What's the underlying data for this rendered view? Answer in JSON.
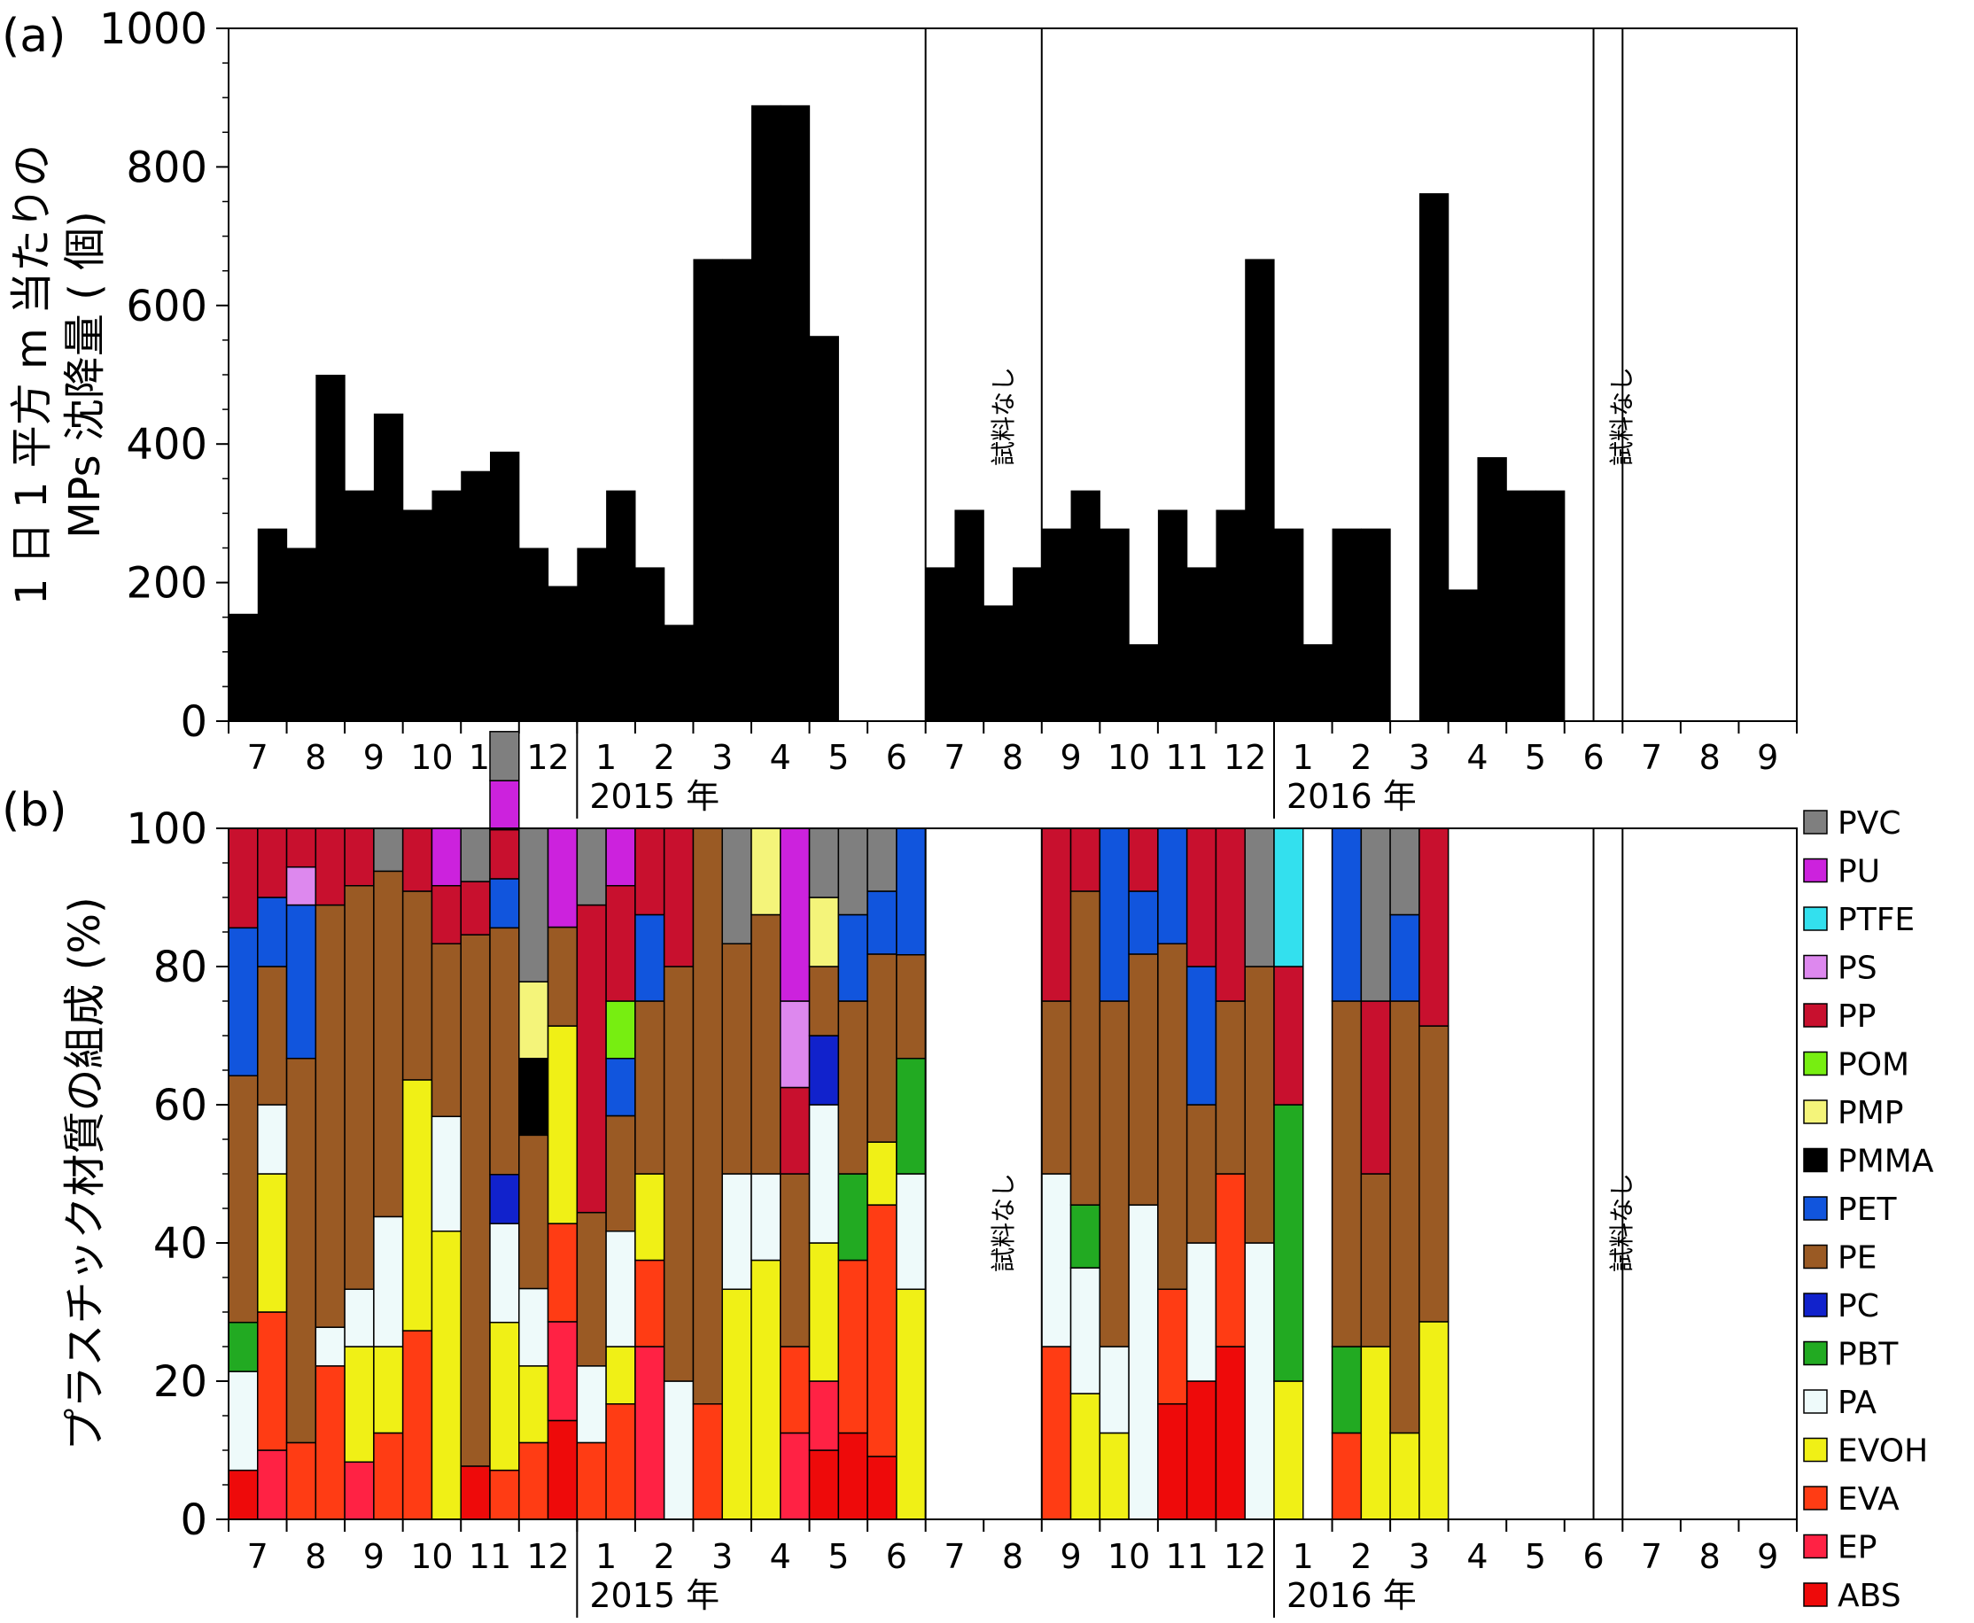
{
  "figure": {
    "panel_a_label": "(a)",
    "panel_b_label": "(b)",
    "no_sample_label": "試料なし",
    "year_labels": [
      "2015 年",
      "2016 年"
    ],
    "month_labels": [
      "7",
      "8",
      "9",
      "10",
      "11",
      "12",
      "1",
      "2",
      "3",
      "4",
      "5",
      "6",
      "7",
      "8",
      "9",
      "10",
      "11",
      "12",
      "1",
      "2",
      "3",
      "4",
      "5",
      "6",
      "7",
      "8",
      "9"
    ]
  },
  "chart_data": [
    {
      "type": "bar",
      "panel": "(a)",
      "ylabel_line1": "1 日 1 平方 m 当たりの",
      "ylabel_line2": "MPs 沈降量 ( 個)",
      "ylim": [
        0,
        1000
      ],
      "yticks": [
        "0",
        "200",
        "400",
        "600",
        "800",
        "1000"
      ],
      "categories": [
        "7",
        "8",
        "9",
        "10",
        "11",
        "12",
        "1",
        "2",
        "3",
        "4",
        "5",
        "6",
        "7",
        "8",
        "9",
        "10",
        "11",
        "12",
        "1",
        "2",
        "3",
        "4",
        "5",
        "6",
        "7",
        "8",
        "9"
      ],
      "years": [
        "2015 年",
        "2016 年"
      ],
      "no_sample_periods": [
        "2015-7 – 2015-8",
        "2016-6 (end) – 2016-7 (start)"
      ],
      "biweekly_values": [
        155,
        278,
        250,
        500,
        333,
        444,
        305,
        333,
        361,
        389,
        250,
        195,
        250,
        333,
        222,
        139,
        667,
        667,
        889,
        889,
        556,
        null,
        null,
        null,
        222,
        305,
        167,
        222,
        278,
        333,
        278,
        111,
        305,
        222,
        305,
        667,
        278,
        111,
        278,
        278,
        null,
        762,
        190,
        381,
        333,
        333
      ]
    },
    {
      "type": "bar",
      "stacked": true,
      "panel": "(b)",
      "ylabel": "プラスチック材質の組成 (%)",
      "ylim": [
        0,
        100
      ],
      "yticks": [
        "0",
        "20",
        "40",
        "60",
        "80",
        "100"
      ],
      "legend": [
        "PVC",
        "PU",
        "PTFE",
        "PS",
        "PP",
        "POM",
        "PMP",
        "PMMA",
        "PET",
        "PE",
        "PC",
        "PBT",
        "PA",
        "EVOH",
        "EVA",
        "EP",
        "ABS"
      ],
      "legend_position": "right",
      "colors": {
        "PVC": "#7f7f7f",
        "PU": "#cc22dd",
        "PTFE": "#33e0ee",
        "PS": "#dd88ee",
        "PP": "#c8102e",
        "POM": "#77ee11",
        "PMP": "#f4f47a",
        "PMMA": "#000000",
        "PET": "#1155dd",
        "PE": "#9a5a24",
        "PC": "#1122cc",
        "PBT": "#22aa22",
        "PA": "#eefafa",
        "EVOH": "#f0f016",
        "EVA": "#ff3c14",
        "EP": "#ff2244",
        "ABS": "#ee0a0a"
      },
      "composition_segments_bottom_to_top": [
        [
          [
            "ABS",
            7.1
          ],
          [
            "PA",
            14.3
          ],
          [
            "PBT",
            7.1
          ],
          [
            "PE",
            35.7
          ],
          [
            "PET",
            21.4
          ],
          [
            "PP",
            14.4
          ]
        ],
        [
          [
            "EP",
            10
          ],
          [
            "EVA",
            20
          ],
          [
            "EVOH",
            20
          ],
          [
            "PA",
            10
          ],
          [
            "PE",
            20
          ],
          [
            "PET",
            10
          ],
          [
            "PP",
            10
          ]
        ],
        [
          [
            "EVA",
            11.1
          ],
          [
            "PE",
            55.6
          ],
          [
            "PET",
            22.2
          ],
          [
            "PS",
            5.5
          ],
          [
            "PP",
            5.6
          ]
        ],
        [
          [
            "EVA",
            22.2
          ],
          [
            "PA",
            5.6
          ],
          [
            "PE",
            61.1
          ],
          [
            "PP",
            11.1
          ]
        ],
        [
          [
            "EP",
            8.3
          ],
          [
            "EVOH",
            16.7
          ],
          [
            "PA",
            8.3
          ],
          [
            "PE",
            58.4
          ],
          [
            "PP",
            8.3
          ]
        ],
        [
          [
            "EVA",
            12.5
          ],
          [
            "EVOH",
            12.5
          ],
          [
            "PA",
            18.8
          ],
          [
            "PE",
            50.0
          ],
          [
            "PVC",
            6.2
          ]
        ],
        [
          [
            "EVA",
            27.3
          ],
          [
            "EVOH",
            36.3
          ],
          [
            "PE",
            27.3
          ],
          [
            "PP",
            9.1
          ]
        ],
        [
          [
            "EVOH",
            41.7
          ],
          [
            "PA",
            16.6
          ],
          [
            "PE",
            25.0
          ],
          [
            "PP",
            8.4
          ],
          [
            "PU",
            8.3
          ]
        ],
        [
          [
            "ABS",
            7.7
          ],
          [
            "PE",
            76.9
          ],
          [
            "PP",
            7.7
          ],
          [
            "PVC",
            7.7
          ]
        ],
        [
          [
            "EVA",
            7.1
          ],
          [
            "EVOH",
            21.4
          ],
          [
            "PA",
            14.3
          ],
          [
            "PC",
            7.1
          ],
          [
            "PE",
            35.7
          ],
          [
            "PET",
            7.1
          ],
          [
            "PP",
            7.1
          ],
          [
            "PU",
            7.1
          ],
          [
            "PVC",
            7.1
          ]
        ],
        [
          [
            "EVA",
            11.1
          ],
          [
            "EVOH",
            11.1
          ],
          [
            "PA",
            11.2
          ],
          [
            "PE",
            22.2
          ],
          [
            "PMMA",
            11.1
          ],
          [
            "PMP",
            11.1
          ],
          [
            "PVC",
            22.2
          ]
        ],
        [
          [
            "ABS",
            14.3
          ],
          [
            "EP",
            14.3
          ],
          [
            "EVA",
            14.2
          ],
          [
            "EVOH",
            28.6
          ],
          [
            "PE",
            14.3
          ],
          [
            "PP",
            0
          ],
          [
            "PU",
            14.3
          ]
        ],
        [
          [
            "EVA",
            11.1
          ],
          [
            "PA",
            11.1
          ],
          [
            "PE",
            22.2
          ],
          [
            "PP",
            44.5
          ],
          [
            "PVC",
            11.1
          ]
        ],
        [
          [
            "EVA",
            16.7
          ],
          [
            "EVOH",
            8.3
          ],
          [
            "PA",
            16.7
          ],
          [
            "PE",
            16.7
          ],
          [
            "PET",
            8.3
          ],
          [
            "POM",
            8.3
          ],
          [
            "PP",
            16.7
          ],
          [
            "PU",
            8.3
          ]
        ],
        [
          [
            "EP",
            25
          ],
          [
            "EVA",
            12.5
          ],
          [
            "EVOH",
            12.5
          ],
          [
            "PE",
            25
          ],
          [
            "PET",
            12.5
          ],
          [
            "PP",
            12.5
          ]
        ],
        [
          [
            "PA",
            20
          ],
          [
            "PE",
            60
          ],
          [
            "PP",
            20
          ]
        ],
        [
          [
            "EVA",
            16.7
          ],
          [
            "PE",
            83.3
          ]
        ],
        [
          [
            "EVOH",
            33.3
          ],
          [
            "PA",
            16.7
          ],
          [
            "PE",
            33.3
          ],
          [
            "PVC",
            16.7
          ]
        ],
        [
          [
            "EVOH",
            37.5
          ],
          [
            "PA",
            12.5
          ],
          [
            "PE",
            37.5
          ],
          [
            "PMP",
            12.5
          ]
        ],
        [
          [
            "EP",
            12.5
          ],
          [
            "EVA",
            12.5
          ],
          [
            "PE",
            25
          ],
          [
            "PP",
            12.5
          ],
          [
            "PS",
            12.5
          ],
          [
            "PU",
            25
          ]
        ],
        [
          [
            "ABS",
            10
          ],
          [
            "EP",
            10
          ],
          [
            "EVOH",
            20
          ],
          [
            "PA",
            20
          ],
          [
            "PC",
            10
          ],
          [
            "PE",
            10
          ],
          [
            "PMP",
            10
          ],
          [
            "PVC",
            10
          ]
        ],
        [
          [
            "ABS",
            12.5
          ],
          [
            "EVA",
            25
          ],
          [
            "PBT",
            12.5
          ],
          [
            "PE",
            25
          ],
          [
            "PET",
            12.5
          ],
          [
            "PVC",
            12.5
          ]
        ],
        [
          [
            "ABS",
            9.1
          ],
          [
            "EVA",
            36.4
          ],
          [
            "EVOH",
            9.1
          ],
          [
            "PE",
            27.2
          ],
          [
            "PET",
            9.1
          ],
          [
            "PVC",
            9.1
          ]
        ],
        [
          [
            "EVOH",
            33.3
          ],
          [
            "PA",
            16.7
          ],
          [
            "PBT",
            16.7
          ],
          [
            "PE",
            15.0
          ],
          [
            "PET",
            18.3
          ]
        ],
        [
          [
            "PA",
            37.5
          ],
          [
            "PE",
            25
          ],
          [
            "PP",
            37.5
          ]
        ],
        [
          [
            "EVA",
            10
          ],
          [
            "EVOH",
            20
          ],
          [
            "PE",
            50
          ],
          [
            "PP",
            20
          ]
        ],
        [
          [
            "EP",
            16.7
          ],
          [
            "PA",
            16.6
          ],
          [
            "PE",
            50
          ],
          [
            "PVC",
            16.7
          ]
        ],
        [
          [
            "EP",
            10
          ],
          [
            "EVOH",
            30
          ],
          [
            "PA",
            20
          ],
          [
            "PE",
            20
          ],
          [
            "PET",
            10
          ],
          [
            "PP",
            10
          ]
        ],
        [
          [
            "EVA",
            25
          ],
          [
            "PA",
            25
          ],
          [
            "PE",
            25
          ],
          [
            "PP",
            25
          ]
        ],
        [
          [
            "EVOH",
            18.2
          ],
          [
            "PA",
            18.2
          ],
          [
            "PBT",
            9.1
          ],
          [
            "PE",
            45.4
          ],
          [
            "PP",
            9.1
          ]
        ],
        [
          [
            "EVOH",
            12.5
          ],
          [
            "PA",
            12.5
          ],
          [
            "PE",
            50
          ],
          [
            "PET",
            25
          ]
        ],
        [
          [
            "PA",
            45.5
          ],
          [
            "PE",
            36.3
          ],
          [
            "PET",
            9.1
          ],
          [
            "PP",
            9.1
          ]
        ],
        [
          [
            "ABS",
            16.7
          ],
          [
            "EVA",
            16.6
          ],
          [
            "PE",
            50
          ],
          [
            "PET",
            16.7
          ]
        ],
        [
          [
            "ABS",
            20
          ],
          [
            "PA",
            20
          ],
          [
            "PE",
            20
          ],
          [
            "PET",
            20
          ],
          [
            "PP",
            20
          ]
        ],
        [
          [
            "ABS",
            25
          ],
          [
            "EVA",
            25
          ],
          [
            "PE",
            25
          ],
          [
            "PP",
            25
          ]
        ],
        [
          [
            "PA",
            40
          ],
          [
            "PE",
            40
          ],
          [
            "PVC",
            20
          ]
        ],
        [
          [
            "EVOH",
            20
          ],
          [
            "PBT",
            40
          ],
          [
            "PP",
            20
          ],
          [
            "PTFE",
            20
          ]
        ],
        null,
        [
          [
            "EVA",
            12.5
          ],
          [
            "PBT",
            12.5
          ],
          [
            "PE",
            50
          ],
          [
            "PET",
            25
          ]
        ],
        [
          [
            "EVOH",
            25
          ],
          [
            "PE",
            25
          ],
          [
            "PP",
            25
          ],
          [
            "PVC",
            25
          ]
        ],
        [
          [
            "EVOH",
            12.5
          ],
          [
            "PE",
            62.5
          ],
          [
            "PET",
            12.5
          ],
          [
            "PVC",
            12.5
          ]
        ],
        [
          [
            "EVOH",
            28.6
          ],
          [
            "PE",
            42.8
          ],
          [
            "PP",
            28.6
          ]
        ]
      ]
    }
  ]
}
